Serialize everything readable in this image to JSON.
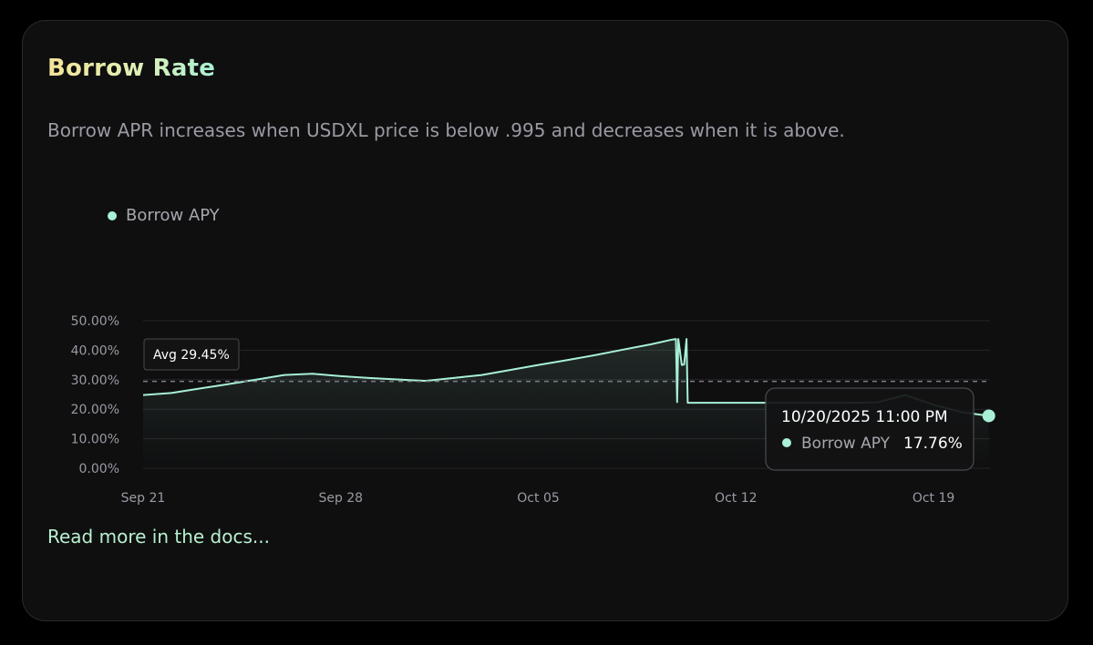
{
  "card": {
    "title": "Borrow Rate",
    "subtitle": "Borrow APR increases when USDXL price is below .995 and decreases when it is above.",
    "docs_link": "Read more in the docs..."
  },
  "colors": {
    "accent": "#a8f0d6",
    "title_gradient_start": "#f4e39a",
    "title_gradient_end": "#a8f0d6",
    "background": "#0f0f10",
    "grid": "#2a2a2e",
    "muted_text": "#9a9aa3"
  },
  "chart_data": {
    "type": "line",
    "legend": "Borrow APY",
    "legend_position": "top-left",
    "grid": true,
    "x_ticks": [
      "Sep 21",
      "Sep 28",
      "Oct 05",
      "Oct 12",
      "Oct 19"
    ],
    "y_ticks": [
      "0.00%",
      "10.00%",
      "20.00%",
      "30.00%",
      "40.00%",
      "50.00%"
    ],
    "ylim": [
      0,
      50
    ],
    "xlim": [
      "2025-09-21",
      "2025-10-21"
    ],
    "average": {
      "label": "Avg 29.45%",
      "value": 29.45
    },
    "tooltip": {
      "date": "10/20/2025 11:00 PM",
      "series": "Borrow APY",
      "value": "17.76%",
      "value_num": 17.76
    },
    "series": [
      {
        "name": "Borrow APY",
        "points": [
          [
            "2025-09-21",
            24.8
          ],
          [
            "2025-09-22",
            25.5
          ],
          [
            "2025-09-23",
            27.0
          ],
          [
            "2025-09-24",
            28.5
          ],
          [
            "2025-09-25",
            30.0
          ],
          [
            "2025-09-26",
            31.6
          ],
          [
            "2025-09-27",
            32.0
          ],
          [
            "2025-09-28",
            31.2
          ],
          [
            "2025-09-29",
            30.6
          ],
          [
            "2025-09-30",
            30.1
          ],
          [
            "2025-10-01",
            29.6
          ],
          [
            "2025-10-02",
            30.6
          ],
          [
            "2025-10-03",
            31.6
          ],
          [
            "2025-10-04",
            33.3
          ],
          [
            "2025-10-05",
            35.0
          ],
          [
            "2025-10-06",
            36.6
          ],
          [
            "2025-10-07",
            38.3
          ],
          [
            "2025-10-08",
            40.2
          ],
          [
            "2025-10-09",
            42.0
          ],
          [
            "2025-10-09T18:00",
            43.6
          ],
          [
            "2025-10-09T21:00",
            43.8
          ],
          [
            "2025-10-09T22:00",
            22.4
          ],
          [
            "2025-10-09T23:00",
            43.8
          ],
          [
            "2025-10-10T02:00",
            35.0
          ],
          [
            "2025-10-10T04:00",
            35.2
          ],
          [
            "2025-10-10T06:00",
            43.8
          ],
          [
            "2025-10-10T07:00",
            22.2
          ],
          [
            "2025-10-12",
            22.2
          ],
          [
            "2025-10-14",
            22.2
          ],
          [
            "2025-10-16",
            22.2
          ],
          [
            "2025-10-17",
            22.3
          ],
          [
            "2025-10-18",
            24.8
          ],
          [
            "2025-10-19",
            21.5
          ],
          [
            "2025-10-20",
            19.0
          ],
          [
            "2025-10-20T23:00",
            17.76
          ]
        ]
      }
    ]
  }
}
